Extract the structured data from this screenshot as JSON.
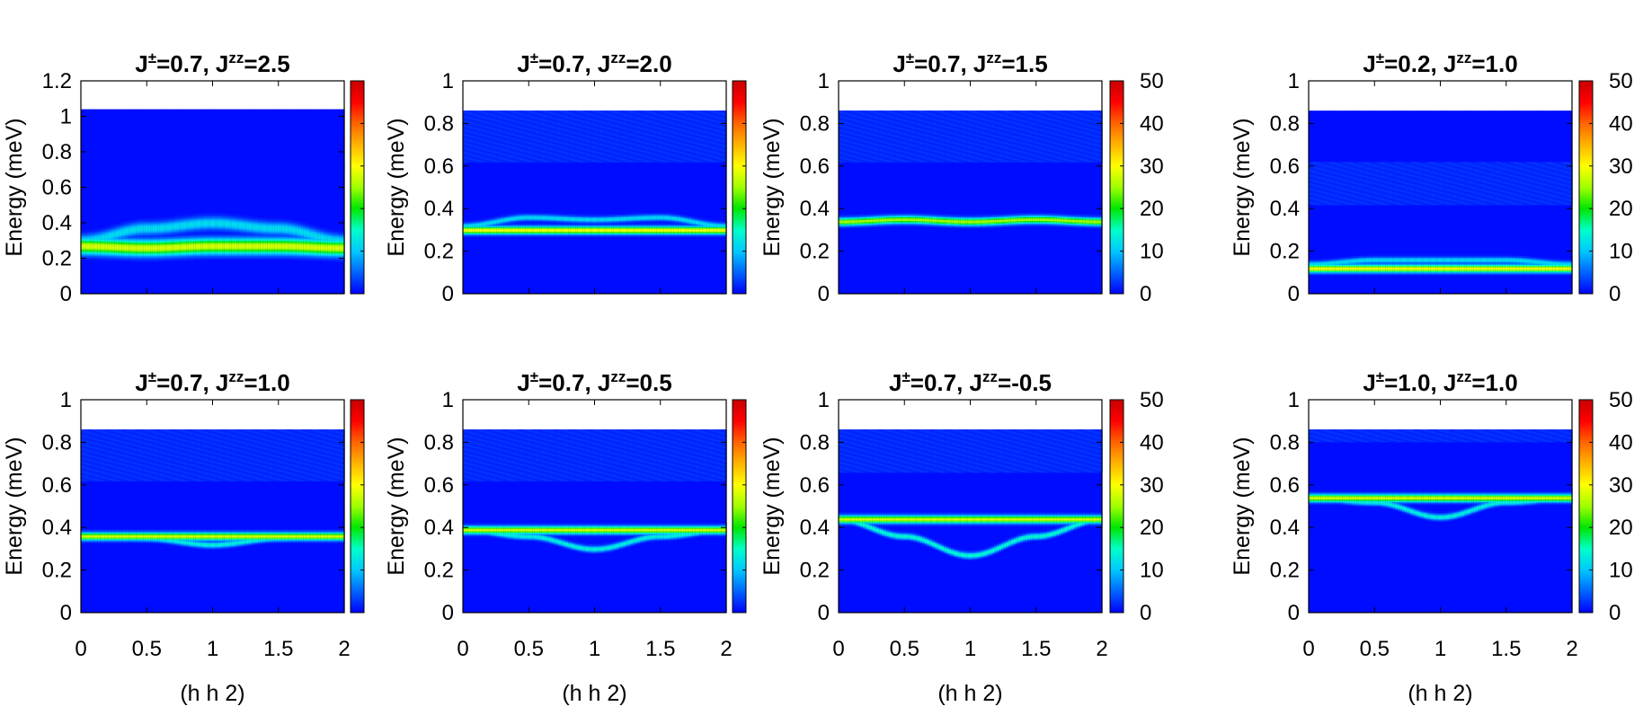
{
  "chart_data": [
    {
      "type": "heatmap",
      "title": "J±=0.7, Jzz=2.5",
      "title_parts": {
        "jpm": "0.7",
        "jzz": "2.5"
      },
      "ylabel": "Energy (meV)",
      "xlabel": "",
      "xlim": [
        0,
        2
      ],
      "ylim": [
        0,
        1.2
      ],
      "xticks": [],
      "yticks": [
        "0",
        "0.2",
        "0.4",
        "0.6",
        "0.8",
        "1",
        "1.2"
      ],
      "colorbar": {
        "range": [
          0,
          50
        ],
        "ticks": []
      },
      "data_ceiling": 1.04,
      "bands": [
        {
          "e": [
            0.27,
            0.26,
            0.27,
            0.27,
            0.26
          ],
          "intensity": 28,
          "width": 0.06
        },
        {
          "e": [
            0.3,
            0.37,
            0.4,
            0.37,
            0.3
          ],
          "intensity": 12,
          "width": 0.05
        }
      ],
      "background": []
    },
    {
      "type": "heatmap",
      "title": "J±=0.7, Jzz=2.0",
      "title_parts": {
        "jpm": "0.7",
        "jzz": "2.0"
      },
      "ylabel": "Energy (meV)",
      "xlabel": "",
      "xlim": [
        0,
        2
      ],
      "ylim": [
        0,
        1
      ],
      "xticks": [],
      "yticks": [
        "0",
        "0.2",
        "0.4",
        "0.6",
        "0.8",
        "1"
      ],
      "colorbar": {
        "range": [
          0,
          50
        ],
        "ticks": []
      },
      "data_ceiling": 0.86,
      "bands": [
        {
          "e": [
            0.3,
            0.3,
            0.3,
            0.3,
            0.3
          ],
          "intensity": 30,
          "width": 0.025
        },
        {
          "e": [
            0.32,
            0.36,
            0.35,
            0.36,
            0.32
          ],
          "intensity": 12,
          "width": 0.02
        }
      ],
      "background": [
        [
          0.62,
          0.86
        ]
      ]
    },
    {
      "type": "heatmap",
      "title": "J±=0.7, Jzz=1.5",
      "title_parts": {
        "jpm": "0.7",
        "jzz": "1.5"
      },
      "ylabel": "Energy (meV)",
      "xlabel": "",
      "xlim": [
        0,
        2
      ],
      "ylim": [
        0,
        1
      ],
      "xticks": [],
      "yticks": [
        "0",
        "0.2",
        "0.4",
        "0.6",
        "0.8",
        "1"
      ],
      "colorbar": {
        "range": [
          0,
          50
        ],
        "ticks": [
          "0",
          "10",
          "20",
          "30",
          "40",
          "50"
        ]
      },
      "data_ceiling": 0.86,
      "bands": [
        {
          "e": [
            0.34,
            0.35,
            0.34,
            0.35,
            0.34
          ],
          "intensity": 26,
          "width": 0.025
        }
      ],
      "background": [
        [
          0.62,
          0.86
        ]
      ]
    },
    {
      "type": "heatmap",
      "title": "J±=0.2, Jzz=1.0",
      "title_parts": {
        "jpm": "0.2",
        "jzz": "1.0"
      },
      "ylabel": "Energy (meV)",
      "xlabel": "",
      "xlim": [
        0,
        2
      ],
      "ylim": [
        0,
        1
      ],
      "xticks": [],
      "yticks": [
        "0",
        "0.2",
        "0.4",
        "0.6",
        "0.8",
        "1"
      ],
      "colorbar": {
        "range": [
          0,
          50
        ],
        "ticks": [
          "0",
          "10",
          "20",
          "30",
          "40",
          "50"
        ]
      },
      "data_ceiling": 0.86,
      "bands": [
        {
          "e": [
            0.12,
            0.12,
            0.12,
            0.12,
            0.12
          ],
          "intensity": 30,
          "width": 0.025
        },
        {
          "e": [
            0.14,
            0.16,
            0.16,
            0.16,
            0.14
          ],
          "intensity": 12,
          "width": 0.02
        }
      ],
      "background": [
        [
          0.42,
          0.62
        ]
      ]
    },
    {
      "type": "heatmap",
      "title": "J±=0.7, Jzz=1.0",
      "title_parts": {
        "jpm": "0.7",
        "jzz": "1.0"
      },
      "ylabel": "Energy (meV)",
      "xlabel": "(h h 2)",
      "xlim": [
        0,
        2
      ],
      "ylim": [
        0,
        1
      ],
      "xticks": [
        "0",
        "0.5",
        "1",
        "1.5",
        "2"
      ],
      "yticks": [
        "0",
        "0.2",
        "0.4",
        "0.6",
        "0.8",
        "1"
      ],
      "colorbar": {
        "range": [
          0,
          50
        ],
        "ticks": []
      },
      "data_ceiling": 0.86,
      "bands": [
        {
          "e": [
            0.36,
            0.36,
            0.36,
            0.36,
            0.36
          ],
          "intensity": 28,
          "width": 0.025
        },
        {
          "e": [
            0.36,
            0.35,
            0.32,
            0.35,
            0.36
          ],
          "intensity": 14,
          "width": 0.02
        }
      ],
      "background": [
        [
          0.62,
          0.86
        ]
      ]
    },
    {
      "type": "heatmap",
      "title": "J±=0.7, Jzz=0.5",
      "title_parts": {
        "jpm": "0.7",
        "jzz": "0.5"
      },
      "ylabel": "Energy (meV)",
      "xlabel": "(h h 2)",
      "xlim": [
        0,
        2
      ],
      "ylim": [
        0,
        1
      ],
      "xticks": [
        "0",
        "0.5",
        "1",
        "1.5",
        "2"
      ],
      "yticks": [
        "0",
        "0.2",
        "0.4",
        "0.6",
        "0.8",
        "1"
      ],
      "colorbar": {
        "range": [
          0,
          50
        ],
        "ticks": []
      },
      "data_ceiling": 0.86,
      "bands": [
        {
          "e": [
            0.39,
            0.39,
            0.39,
            0.39,
            0.39
          ],
          "intensity": 28,
          "width": 0.025
        },
        {
          "e": [
            0.39,
            0.36,
            0.3,
            0.36,
            0.39
          ],
          "intensity": 14,
          "width": 0.02
        }
      ],
      "background": [
        [
          0.62,
          0.86
        ]
      ]
    },
    {
      "type": "heatmap",
      "title": "J±=0.7, Jzz=-0.5",
      "title_parts": {
        "jpm": "0.7",
        "jzz": "-0.5"
      },
      "ylabel": "Energy (meV)",
      "xlabel": "(h h 2)",
      "xlim": [
        0,
        2
      ],
      "ylim": [
        0,
        1
      ],
      "xticks": [
        "0",
        "0.5",
        "1",
        "1.5",
        "2"
      ],
      "yticks": [
        "0",
        "0.2",
        "0.4",
        "0.6",
        "0.8",
        "1"
      ],
      "colorbar": {
        "range": [
          0,
          50
        ],
        "ticks": [
          "0",
          "10",
          "20",
          "30",
          "40",
          "50"
        ]
      },
      "data_ceiling": 0.86,
      "bands": [
        {
          "e": [
            0.44,
            0.44,
            0.44,
            0.44,
            0.44
          ],
          "intensity": 28,
          "width": 0.025
        },
        {
          "e": [
            0.44,
            0.36,
            0.27,
            0.36,
            0.44
          ],
          "intensity": 15,
          "width": 0.02
        }
      ],
      "background": [
        [
          0.66,
          0.86
        ]
      ]
    },
    {
      "type": "heatmap",
      "title": "J±=1.0, Jzz=1.0",
      "title_parts": {
        "jpm": "1.0",
        "jzz": "1.0"
      },
      "ylabel": "Energy (meV)",
      "xlabel": "(h h 2)",
      "xlim": [
        0,
        2
      ],
      "ylim": [
        0,
        1
      ],
      "xticks": [
        "0",
        "0.5",
        "1",
        "1.5",
        "2"
      ],
      "yticks": [
        "0",
        "0.2",
        "0.4",
        "0.6",
        "0.8",
        "1"
      ],
      "colorbar": {
        "range": [
          0,
          50
        ],
        "ticks": [
          "0",
          "10",
          "20",
          "30",
          "40",
          "50"
        ]
      },
      "data_ceiling": 0.86,
      "bands": [
        {
          "e": [
            0.54,
            0.54,
            0.54,
            0.54,
            0.54
          ],
          "intensity": 28,
          "width": 0.025
        },
        {
          "e": [
            0.54,
            0.52,
            0.45,
            0.52,
            0.54
          ],
          "intensity": 14,
          "width": 0.02
        }
      ],
      "background": [
        [
          0.8,
          0.86
        ]
      ]
    }
  ],
  "colors": {
    "scale": [
      "#0000ff",
      "#0064ff",
      "#00c8ff",
      "#00ffc8",
      "#00e600",
      "#a0ff00",
      "#ffff00",
      "#ffb400",
      "#ff6400",
      "#ff0000",
      "#c80000"
    ],
    "background": "#0020ff"
  }
}
